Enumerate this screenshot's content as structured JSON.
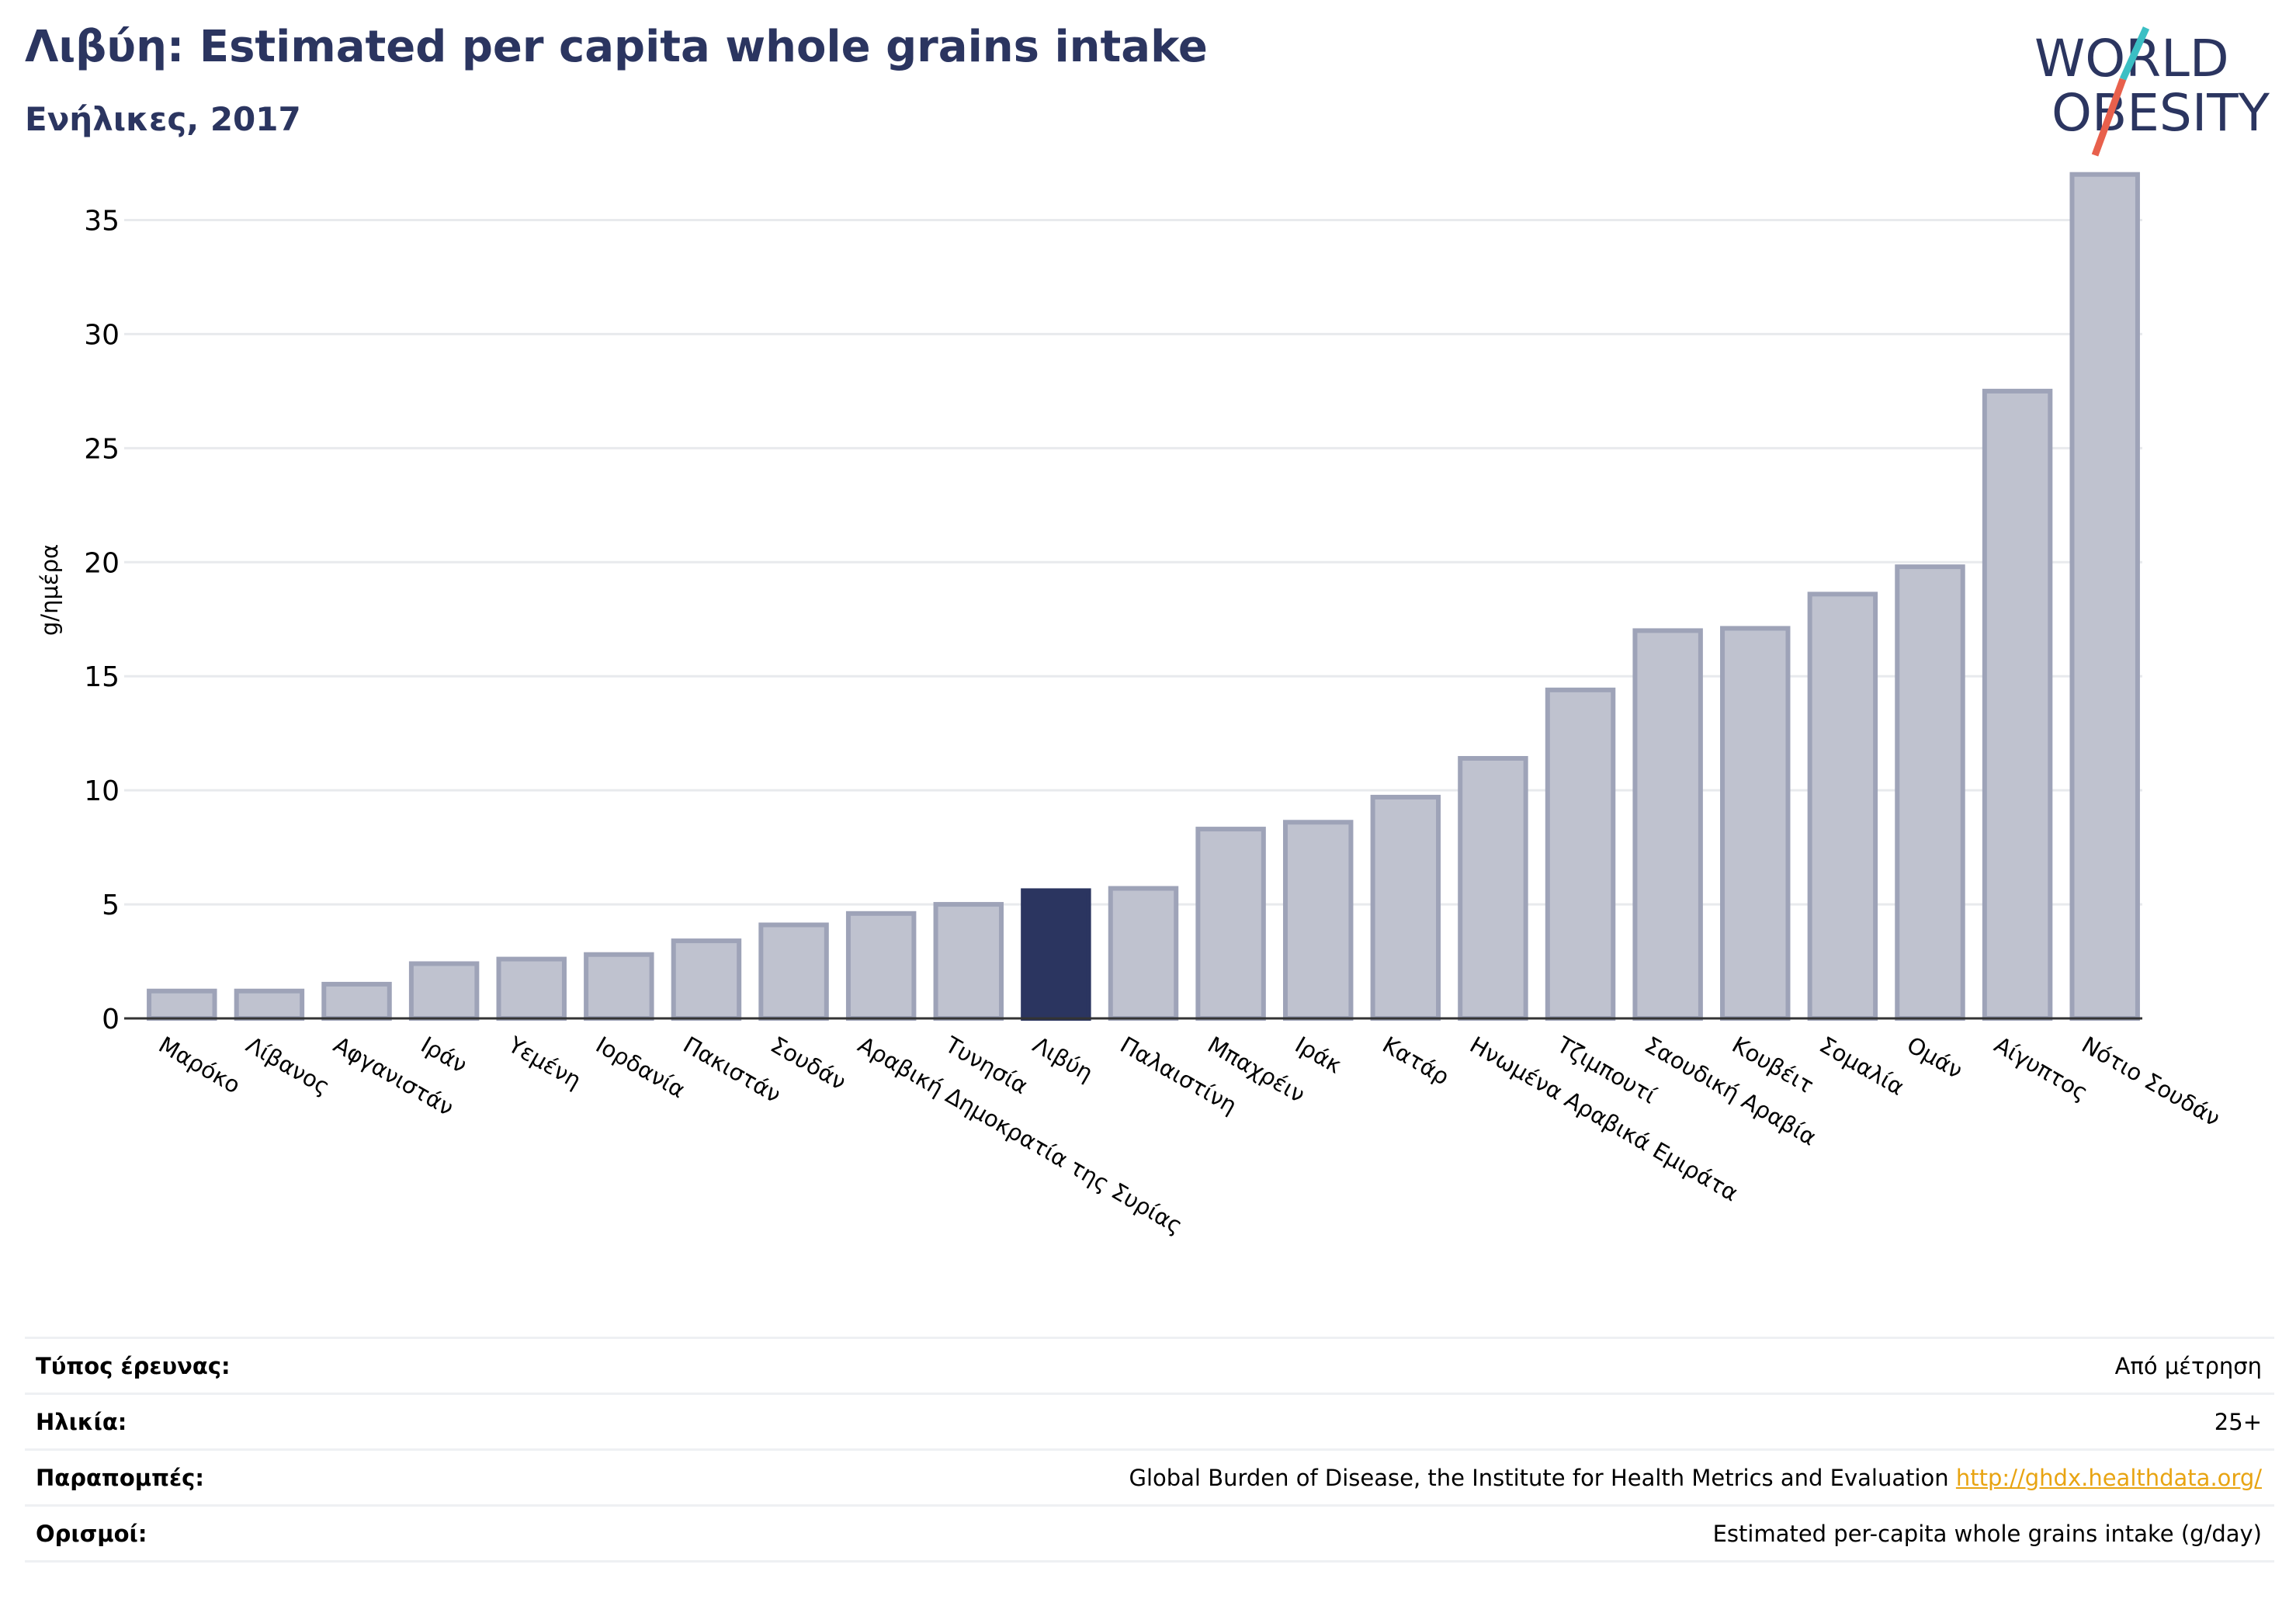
{
  "header": {
    "title": "Λιβύη: Estimated per capita whole grains intake",
    "subtitle": "Ενήλικες, 2017"
  },
  "logo": {
    "line1": "WORLD",
    "line2": "OBESITY",
    "colors": {
      "text": "#2b3560",
      "slash_red": "#e8604c",
      "slash_teal": "#3bbfc4"
    }
  },
  "colors": {
    "bar": "#bfc2cf",
    "bar_border": "#9ea3b8",
    "highlight": "#2b3560",
    "grid": "#e8eaed",
    "axis": "#333333"
  },
  "chart_data": {
    "type": "bar",
    "title": "Λιβύη: Estimated per capita whole grains intake",
    "subtitle": "Ενήλικες, 2017",
    "xlabel": "",
    "ylabel": "g/ημέρα",
    "ylim": [
      0,
      37.5
    ],
    "yticks": [
      0,
      5,
      10,
      15,
      20,
      25,
      30,
      35
    ],
    "grid": true,
    "highlight": "Λιβύη",
    "categories": [
      "Μαρόκο",
      "Λίβανος",
      "Αφγανιστάν",
      "Ιράν",
      "Υεμένη",
      "Ιορδανία",
      "Πακιστάν",
      "Σουδάν",
      "Αραβική Δημοκρατία της Συρίας",
      "Τυνησία",
      "Λιβύη",
      "Παλαιστίνη",
      "Μπαχρέιν",
      "Ιράκ",
      "Κατάρ",
      "Ηνωμένα Αραβικά Εμιράτα",
      "Τζιμπουτί",
      "Σαουδική Αραβία",
      "Κουβέιτ",
      "Σομαλία",
      "Ομάν",
      "Αίγυπτος",
      "Νότιο Σουδάν"
    ],
    "values": [
      1.2,
      1.2,
      1.5,
      2.4,
      2.6,
      2.8,
      3.4,
      4.1,
      4.6,
      5.0,
      5.6,
      5.7,
      8.3,
      8.6,
      9.7,
      11.4,
      14.4,
      17.0,
      17.1,
      18.6,
      19.8,
      27.5,
      37.0
    ]
  },
  "info": [
    {
      "key": "Τύπος έρευνας:",
      "value": "Από μέτρηση",
      "link": ""
    },
    {
      "key": "Ηλικία:",
      "value": "25+",
      "link": ""
    },
    {
      "key": "Παραπομπές:",
      "value": "Global Burden of Disease, the Institute for Health Metrics and Evaluation",
      "link": "http://ghdx.healthdata.org/"
    },
    {
      "key": "Ορισμοί:",
      "value": "Estimated per-capita whole grains intake (g/day)",
      "link": ""
    }
  ]
}
